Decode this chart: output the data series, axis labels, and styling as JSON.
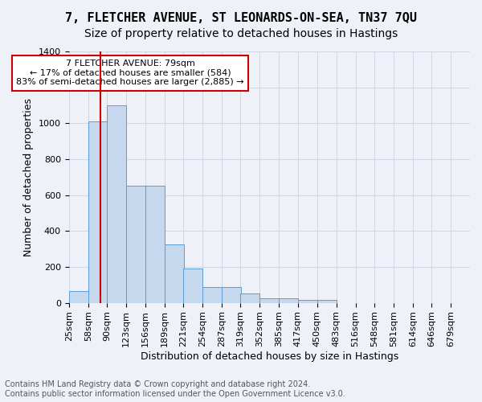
{
  "title": "7, FLETCHER AVENUE, ST LEONARDS-ON-SEA, TN37 7QU",
  "subtitle": "Size of property relative to detached houses in Hastings",
  "xlabel": "Distribution of detached houses by size in Hastings",
  "ylabel": "Number of detached properties",
  "footer_line1": "Contains HM Land Registry data © Crown copyright and database right 2024.",
  "footer_line2": "Contains public sector information licensed under the Open Government Licence v3.0.",
  "bin_labels": [
    "25sqm",
    "58sqm",
    "90sqm",
    "123sqm",
    "156sqm",
    "189sqm",
    "221sqm",
    "254sqm",
    "287sqm",
    "319sqm",
    "352sqm",
    "385sqm",
    "417sqm",
    "450sqm",
    "483sqm",
    "516sqm",
    "548sqm",
    "581sqm",
    "614sqm",
    "646sqm",
    "679sqm"
  ],
  "bin_edges": [
    25,
    58,
    90,
    123,
    156,
    189,
    221,
    254,
    287,
    319,
    352,
    385,
    417,
    450,
    483,
    516,
    548,
    581,
    614,
    646,
    679
  ],
  "bar_heights": [
    65,
    1010,
    1100,
    650,
    650,
    325,
    190,
    90,
    90,
    50,
    25,
    25,
    15,
    15,
    0,
    0,
    0,
    0,
    0,
    0
  ],
  "bar_color": "#c5d8ed",
  "bar_edge_color": "#5b9bd5",
  "grid_color": "#d0d8e8",
  "background_color": "#eef2f8",
  "property_size": 79,
  "red_line_color": "#cc0000",
  "annotation_text": "7 FLETCHER AVENUE: 79sqm\n← 17% of detached houses are smaller (584)\n83% of semi-detached houses are larger (2,885) →",
  "annotation_box_color": "#ffffff",
  "annotation_border_color": "#cc0000",
  "ylim": [
    0,
    1400
  ],
  "yticks": [
    0,
    200,
    400,
    600,
    800,
    1000,
    1200,
    1400
  ],
  "title_fontsize": 11,
  "subtitle_fontsize": 10,
  "axis_label_fontsize": 9,
  "tick_fontsize": 8,
  "annotation_fontsize": 8,
  "footer_fontsize": 7
}
